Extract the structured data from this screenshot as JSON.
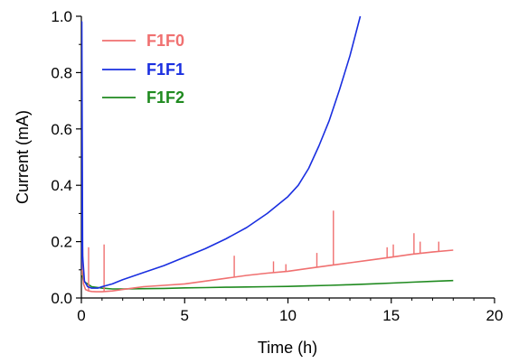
{
  "chart_data": {
    "type": "line",
    "title": "",
    "xlabel": "Time (h)",
    "ylabel": "Current (mA)",
    "xlim": [
      0,
      20
    ],
    "ylim": [
      0,
      1.0
    ],
    "xticks": [
      0,
      5,
      10,
      15,
      20
    ],
    "yticks": [
      0.0,
      0.2,
      0.4,
      0.6,
      0.8,
      1.0
    ],
    "xtick_labels": [
      "0",
      "5",
      "10",
      "15",
      "20"
    ],
    "ytick_labels": [
      "0.0",
      "0.2",
      "0.4",
      "0.6",
      "0.8",
      "1.0"
    ],
    "grid": false,
    "legend_position": "top-left",
    "series": [
      {
        "name": "F1F0",
        "color": "#f07070",
        "x": [
          0.0,
          0.02,
          0.05,
          0.1,
          0.2,
          0.35,
          0.5,
          0.7,
          1.0,
          1.5,
          2.0,
          2.5,
          3.0,
          4.0,
          5.0,
          6.0,
          7.0,
          8.0,
          9.0,
          10.0,
          11.0,
          12.0,
          13.0,
          14.0,
          15.0,
          16.0,
          17.0,
          18.0
        ],
        "y": [
          0.08,
          0.77,
          0.2,
          0.05,
          0.03,
          0.025,
          0.023,
          0.022,
          0.022,
          0.025,
          0.03,
          0.035,
          0.04,
          0.045,
          0.05,
          0.06,
          0.07,
          0.08,
          0.088,
          0.095,
          0.105,
          0.115,
          0.125,
          0.135,
          0.145,
          0.155,
          0.163,
          0.17
        ],
        "spikes": [
          {
            "x": 0.35,
            "y": 0.18
          },
          {
            "x": 1.1,
            "y": 0.19
          },
          {
            "x": 7.4,
            "y": 0.15
          },
          {
            "x": 9.3,
            "y": 0.13
          },
          {
            "x": 9.9,
            "y": 0.12
          },
          {
            "x": 11.4,
            "y": 0.16
          },
          {
            "x": 12.2,
            "y": 0.31
          },
          {
            "x": 14.8,
            "y": 0.18
          },
          {
            "x": 15.1,
            "y": 0.19
          },
          {
            "x": 16.1,
            "y": 0.23
          },
          {
            "x": 16.4,
            "y": 0.2
          },
          {
            "x": 17.3,
            "y": 0.2
          }
        ]
      },
      {
        "name": "F1F1",
        "color": "#1a2fe0",
        "x": [
          0.0,
          0.02,
          0.06,
          0.15,
          0.3,
          0.5,
          0.8,
          1.0,
          1.5,
          2.0,
          3.0,
          4.0,
          5.0,
          6.0,
          7.0,
          8.0,
          9.0,
          10.0,
          10.5,
          11.0,
          11.5,
          12.0,
          12.5,
          13.0,
          13.5
        ],
        "y": [
          0.1,
          0.98,
          0.15,
          0.06,
          0.04,
          0.035,
          0.035,
          0.04,
          0.05,
          0.065,
          0.09,
          0.115,
          0.145,
          0.175,
          0.21,
          0.25,
          0.3,
          0.36,
          0.4,
          0.46,
          0.54,
          0.63,
          0.74,
          0.86,
          1.0
        ]
      },
      {
        "name": "F1F2",
        "color": "#1f8a1f",
        "x": [
          0.0,
          0.1,
          0.3,
          0.5,
          1.0,
          1.5,
          2.0,
          3.0,
          4.0,
          5.0,
          6.0,
          7.0,
          8.0,
          9.0,
          10.0,
          11.0,
          12.0,
          13.0,
          14.0,
          15.0,
          16.0,
          17.0,
          18.0
        ],
        "y": [
          0.1,
          0.06,
          0.05,
          0.04,
          0.035,
          0.032,
          0.032,
          0.033,
          0.034,
          0.036,
          0.037,
          0.038,
          0.039,
          0.04,
          0.041,
          0.043,
          0.045,
          0.047,
          0.05,
          0.053,
          0.056,
          0.059,
          0.062
        ]
      }
    ]
  }
}
